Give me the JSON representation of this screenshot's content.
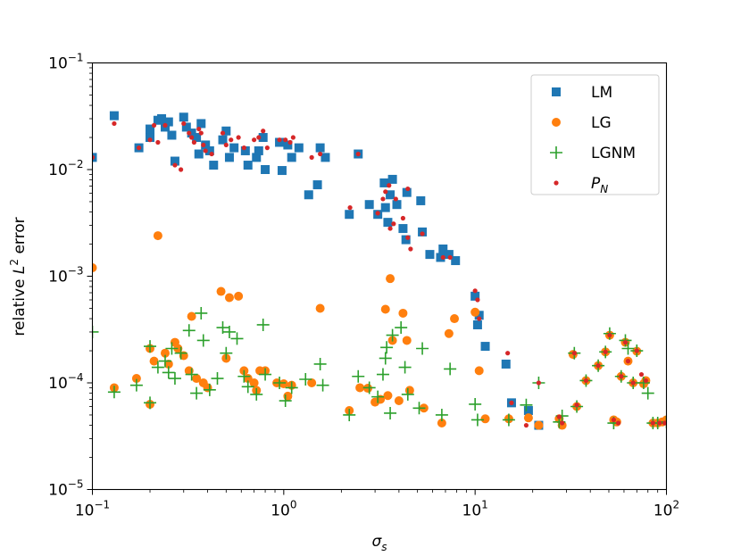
{
  "chart_data": {
    "type": "scatter",
    "title": "",
    "xlabel": "σ_s",
    "ylabel": "relative L^2 error",
    "xscale": "log",
    "yscale": "log",
    "xlim": [
      0.1,
      100
    ],
    "ylim": [
      1e-05,
      0.1
    ],
    "grid": false,
    "legend_position": "top-right",
    "x_ticks": [
      {
        "value": 0.1,
        "base": "10",
        "exp": "−1"
      },
      {
        "value": 1,
        "base": "10",
        "exp": "0"
      },
      {
        "value": 10,
        "base": "10",
        "exp": "1"
      },
      {
        "value": 100,
        "base": "10",
        "exp": "2"
      }
    ],
    "y_ticks": [
      {
        "value": 1e-05,
        "base": "10",
        "exp": "−5"
      },
      {
        "value": 0.0001,
        "base": "10",
        "exp": "−4"
      },
      {
        "value": 0.001,
        "base": "10",
        "exp": "−3"
      },
      {
        "value": 0.01,
        "base": "10",
        "exp": "−2"
      },
      {
        "value": 0.1,
        "base": "10",
        "exp": "−1"
      }
    ],
    "series": [
      {
        "name": "LM",
        "marker": "square",
        "color": "#1f77b4",
        "points": [
          [
            0.1,
            0.013
          ],
          [
            0.13,
            0.032
          ],
          [
            0.175,
            0.016
          ],
          [
            0.2,
            0.024
          ],
          [
            0.2,
            0.02
          ],
          [
            0.22,
            0.029
          ],
          [
            0.23,
            0.03
          ],
          [
            0.24,
            0.025
          ],
          [
            0.25,
            0.028
          ],
          [
            0.26,
            0.021
          ],
          [
            0.27,
            0.012
          ],
          [
            0.3,
            0.031
          ],
          [
            0.31,
            0.025
          ],
          [
            0.33,
            0.022
          ],
          [
            0.35,
            0.02
          ],
          [
            0.36,
            0.014
          ],
          [
            0.37,
            0.027
          ],
          [
            0.39,
            0.017
          ],
          [
            0.41,
            0.015
          ],
          [
            0.43,
            0.011
          ],
          [
            0.48,
            0.019
          ],
          [
            0.5,
            0.023
          ],
          [
            0.52,
            0.013
          ],
          [
            0.55,
            0.016
          ],
          [
            0.63,
            0.015
          ],
          [
            0.65,
            0.011
          ],
          [
            0.72,
            0.013
          ],
          [
            0.74,
            0.015
          ],
          [
            0.78,
            0.02
          ],
          [
            0.8,
            0.01
          ],
          [
            0.95,
            0.018
          ],
          [
            0.98,
            0.0098
          ],
          [
            1.05,
            0.017
          ],
          [
            1.1,
            0.013
          ],
          [
            1.2,
            0.016
          ],
          [
            1.35,
            0.0058
          ],
          [
            1.5,
            0.0072
          ],
          [
            1.55,
            0.016
          ],
          [
            1.65,
            0.013
          ],
          [
            2.2,
            0.0038
          ],
          [
            2.45,
            0.014
          ],
          [
            2.8,
            0.0047
          ],
          [
            3.1,
            0.0038
          ],
          [
            3.35,
            0.0075
          ],
          [
            3.4,
            0.0044
          ],
          [
            3.5,
            0.0032
          ],
          [
            3.6,
            0.0058
          ],
          [
            3.7,
            0.0081
          ],
          [
            3.9,
            0.0047
          ],
          [
            4.2,
            0.0028
          ],
          [
            4.4,
            0.0061
          ],
          [
            4.35,
            0.0022
          ],
          [
            5.2,
            0.0051
          ],
          [
            5.3,
            0.0026
          ],
          [
            5.8,
            0.0016
          ],
          [
            6.6,
            0.0015
          ],
          [
            6.8,
            0.0018
          ],
          [
            7.3,
            0.0016
          ],
          [
            7.9,
            0.0014
          ],
          [
            10,
            0.00065
          ],
          [
            10.3,
            0.00035
          ],
          [
            10.5,
            0.00043
          ],
          [
            11.3,
            0.00022
          ],
          [
            14.5,
            0.00015
          ],
          [
            15.5,
            6.5e-05
          ],
          [
            19,
            5.5e-05
          ],
          [
            21.5,
            4e-05
          ]
        ]
      },
      {
        "name": "LG",
        "marker": "circle",
        "color": "#ff7f0e",
        "points": [
          [
            0.1,
            0.0012
          ],
          [
            0.13,
            9e-05
          ],
          [
            0.17,
            0.00011
          ],
          [
            0.2,
            6.3e-05
          ],
          [
            0.2,
            0.00021
          ],
          [
            0.21,
            0.00016
          ],
          [
            0.22,
            0.0024
          ],
          [
            0.24,
            0.00019
          ],
          [
            0.25,
            0.00015
          ],
          [
            0.27,
            0.00024
          ],
          [
            0.28,
            0.00021
          ],
          [
            0.3,
            0.00018
          ],
          [
            0.32,
            0.00013
          ],
          [
            0.33,
            0.00042
          ],
          [
            0.35,
            0.00011
          ],
          [
            0.38,
            0.0001
          ],
          [
            0.4,
            9e-05
          ],
          [
            0.47,
            0.00072
          ],
          [
            0.5,
            0.00017
          ],
          [
            0.52,
            0.00063
          ],
          [
            0.58,
            0.00065
          ],
          [
            0.62,
            0.00013
          ],
          [
            0.65,
            0.00011
          ],
          [
            0.7,
            0.0001
          ],
          [
            0.72,
            8.5e-05
          ],
          [
            0.75,
            0.00013
          ],
          [
            0.8,
            0.00013
          ],
          [
            0.92,
            0.0001
          ],
          [
            1,
            9.8e-05
          ],
          [
            1.05,
            7.5e-05
          ],
          [
            1.1,
            9.5e-05
          ],
          [
            1.4,
            0.0001
          ],
          [
            1.55,
            0.0005
          ],
          [
            2.2,
            5.5e-05
          ],
          [
            2.5,
            9e-05
          ],
          [
            2.75,
            8.9e-05
          ],
          [
            3,
            6.6e-05
          ],
          [
            3.2,
            7e-05
          ],
          [
            3.4,
            0.00049
          ],
          [
            3.5,
            7.6e-05
          ],
          [
            3.6,
            0.00095
          ],
          [
            3.7,
            0.00025
          ],
          [
            4,
            6.8e-05
          ],
          [
            4.2,
            0.00045
          ],
          [
            4.4,
            0.00025
          ],
          [
            4.55,
            8.5e-05
          ],
          [
            5.4,
            5.8e-05
          ],
          [
            6.7,
            4.2e-05
          ],
          [
            7.3,
            0.00029
          ],
          [
            7.8,
            0.0004
          ],
          [
            10,
            0.00046
          ],
          [
            10.5,
            0.00013
          ],
          [
            11.3,
            4.6e-05
          ],
          [
            15,
            4.6e-05
          ],
          [
            19,
            4.7e-05
          ],
          [
            21.5,
            4e-05
          ],
          [
            27.5,
            4.6e-05
          ],
          [
            28.5,
            4e-05
          ],
          [
            32.5,
            0.000185
          ],
          [
            34,
            6e-05
          ],
          [
            38,
            0.000105
          ],
          [
            44,
            0.000145
          ],
          [
            48,
            0.000195
          ],
          [
            50.5,
            0.00028
          ],
          [
            53,
            4.5e-05
          ],
          [
            55,
            4.3e-05
          ],
          [
            58,
            0.000115
          ],
          [
            61,
            0.00024
          ],
          [
            63,
            0.00016
          ],
          [
            67,
            0.0001
          ],
          [
            70,
            0.000198
          ],
          [
            76,
            9.8e-05
          ],
          [
            78,
            0.000105
          ],
          [
            85,
            4.2e-05
          ],
          [
            90,
            4.2e-05
          ],
          [
            95,
            4.3e-05
          ],
          [
            100,
            4.5e-05
          ]
        ]
      },
      {
        "name": "LGNM",
        "marker": "plus",
        "color": "#2ca02c",
        "points": [
          [
            0.1,
            0.0003
          ],
          [
            0.13,
            8.2e-05
          ],
          [
            0.17,
            9.5e-05
          ],
          [
            0.2,
            6.5e-05
          ],
          [
            0.2,
            0.00022
          ],
          [
            0.22,
            0.00014
          ],
          [
            0.24,
            0.00016
          ],
          [
            0.25,
            0.000125
          ],
          [
            0.26,
            0.00021
          ],
          [
            0.27,
            0.00011
          ],
          [
            0.29,
            0.00019
          ],
          [
            0.32,
            0.00031
          ],
          [
            0.33,
            0.00012
          ],
          [
            0.35,
            8e-05
          ],
          [
            0.37,
            0.00045
          ],
          [
            0.38,
            0.00025
          ],
          [
            0.41,
            8.6e-05
          ],
          [
            0.45,
            0.00011
          ],
          [
            0.48,
            0.00033
          ],
          [
            0.5,
            0.00019
          ],
          [
            0.52,
            0.0003
          ],
          [
            0.57,
            0.00026
          ],
          [
            0.62,
            0.000115
          ],
          [
            0.65,
            9.2e-05
          ],
          [
            0.72,
            7.8e-05
          ],
          [
            0.78,
            0.00035
          ],
          [
            0.8,
            0.00012
          ],
          [
            0.95,
            0.0001
          ],
          [
            1.02,
            6.8e-05
          ],
          [
            1.1,
            9e-05
          ],
          [
            1.3,
            0.000108
          ],
          [
            1.55,
            0.00015
          ],
          [
            1.6,
            9.5e-05
          ],
          [
            2.2,
            5e-05
          ],
          [
            2.45,
            0.000115
          ],
          [
            2.8,
            9e-05
          ],
          [
            3.1,
            7.4e-05
          ],
          [
            3.3,
            0.00012
          ],
          [
            3.4,
            0.00017
          ],
          [
            3.45,
            0.000215
          ],
          [
            3.6,
            5.2e-05
          ],
          [
            3.7,
            0.00028
          ],
          [
            4.1,
            0.00033
          ],
          [
            4.3,
            0.00014
          ],
          [
            4.45,
            7.8e-05
          ],
          [
            5.1,
            5.8e-05
          ],
          [
            5.3,
            0.00021
          ],
          [
            6.7,
            5e-05
          ],
          [
            7.4,
            0.000135
          ],
          [
            10,
            6.3e-05
          ],
          [
            10.3,
            4.5e-05
          ],
          [
            15,
            4.5e-05
          ],
          [
            18.5,
            6.2e-05
          ],
          [
            21.5,
            0.0001
          ],
          [
            27.5,
            4.3e-05
          ],
          [
            28.5,
            4.9e-05
          ],
          [
            33,
            0.00019
          ],
          [
            34,
            6e-05
          ],
          [
            38,
            0.000105
          ],
          [
            44,
            0.000145
          ],
          [
            48,
            0.000195
          ],
          [
            50.5,
            0.00029
          ],
          [
            53,
            4.2e-05
          ],
          [
            58,
            0.000115
          ],
          [
            61,
            0.00025
          ],
          [
            63,
            0.00021
          ],
          [
            67,
            0.0001
          ],
          [
            70,
            0.0002
          ],
          [
            76,
            0.0001
          ],
          [
            80,
            8e-05
          ],
          [
            85,
            4.2e-05
          ],
          [
            90,
            4.2e-05
          ],
          [
            100,
            4.3e-05
          ]
        ]
      },
      {
        "name": "P_N",
        "marker": "dot",
        "color": "#d62728",
        "points": [
          [
            0.1,
            0.013
          ],
          [
            0.13,
            0.027
          ],
          [
            0.175,
            0.016
          ],
          [
            0.2,
            0.019
          ],
          [
            0.21,
            0.026
          ],
          [
            0.22,
            0.018
          ],
          [
            0.24,
            0.026
          ],
          [
            0.27,
            0.011
          ],
          [
            0.29,
            0.01
          ],
          [
            0.3,
            0.027
          ],
          [
            0.32,
            0.022
          ],
          [
            0.33,
            0.02
          ],
          [
            0.34,
            0.018
          ],
          [
            0.36,
            0.024
          ],
          [
            0.37,
            0.022
          ],
          [
            0.38,
            0.017
          ],
          [
            0.39,
            0.015
          ],
          [
            0.42,
            0.014
          ],
          [
            0.48,
            0.022
          ],
          [
            0.5,
            0.017
          ],
          [
            0.53,
            0.019
          ],
          [
            0.58,
            0.02
          ],
          [
            0.62,
            0.016
          ],
          [
            0.7,
            0.019
          ],
          [
            0.74,
            0.02
          ],
          [
            0.78,
            0.023
          ],
          [
            0.82,
            0.016
          ],
          [
            0.95,
            0.019
          ],
          [
            1.02,
            0.019
          ],
          [
            1.08,
            0.018
          ],
          [
            1.12,
            0.02
          ],
          [
            1.4,
            0.013
          ],
          [
            1.55,
            0.014
          ],
          [
            2.22,
            0.0044
          ],
          [
            2.45,
            0.014
          ],
          [
            3.1,
            0.0039
          ],
          [
            3.3,
            0.0053
          ],
          [
            3.4,
            0.0062
          ],
          [
            3.55,
            0.0071
          ],
          [
            3.6,
            0.0028
          ],
          [
            3.75,
            0.0031
          ],
          [
            3.85,
            0.0053
          ],
          [
            4.2,
            0.0035
          ],
          [
            4.45,
            0.0066
          ],
          [
            4.45,
            0.0023
          ],
          [
            4.6,
            0.0018
          ],
          [
            5.3,
            0.0025
          ],
          [
            6.8,
            0.0015
          ],
          [
            7.4,
            0.0015
          ],
          [
            10,
            0.00073
          ],
          [
            10.3,
            0.0006
          ],
          [
            10.5,
            0.0004
          ],
          [
            14.8,
            0.00019
          ],
          [
            15.5,
            6.5e-05
          ],
          [
            18.5,
            4e-05
          ],
          [
            21.5,
            0.0001
          ],
          [
            27.5,
            4.8e-05
          ],
          [
            28.5,
            4.2e-05
          ],
          [
            33,
            0.00019
          ],
          [
            34,
            6.2e-05
          ],
          [
            38,
            0.000105
          ],
          [
            44,
            0.000145
          ],
          [
            48,
            0.000195
          ],
          [
            50.5,
            0.00028
          ],
          [
            53,
            4.5e-05
          ],
          [
            56,
            4.2e-05
          ],
          [
            58,
            0.000115
          ],
          [
            61,
            0.00024
          ],
          [
            63,
            0.00016
          ],
          [
            67,
            0.0001
          ],
          [
            70,
            0.0002
          ],
          [
            74,
            0.00012
          ],
          [
            78,
            0.000105
          ],
          [
            85,
            4.2e-05
          ],
          [
            92,
            4.2e-05
          ],
          [
            98,
            4.2e-05
          ]
        ]
      }
    ]
  }
}
